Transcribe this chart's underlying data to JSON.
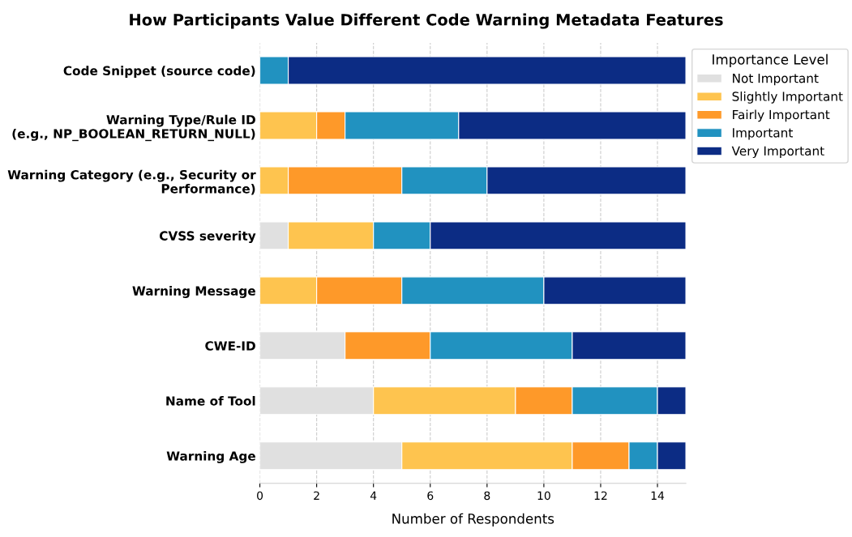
{
  "chart_data": {
    "type": "bar",
    "orientation": "horizontal",
    "stacked": true,
    "title": "How Participants Value Different Code Warning Metadata Features",
    "xlabel": "Number of Respondents",
    "legend_title": "Importance Level",
    "categories": [
      "Code Snippet (source code)",
      "Warning Type/Rule ID\n(e.g., NP_BOOLEAN_RETURN_NULL)",
      "Warning Category (e.g., Security or\nPerformance)",
      "CVSS severity",
      "Warning Message",
      "CWE-ID",
      "Name of Tool",
      "Warning Age"
    ],
    "series": [
      {
        "name": "Not Important",
        "color": "#e0e0e0",
        "values": [
          0,
          0,
          0,
          1,
          0,
          3,
          4,
          5
        ]
      },
      {
        "name": "Slightly Important",
        "color": "#fec44f",
        "values": [
          0,
          2,
          1,
          3,
          2,
          0,
          5,
          6
        ]
      },
      {
        "name": "Fairly Important",
        "color": "#fe9929",
        "values": [
          0,
          1,
          4,
          0,
          3,
          3,
          2,
          2
        ]
      },
      {
        "name": "Important",
        "color": "#2192c0",
        "values": [
          1,
          4,
          3,
          2,
          5,
          5,
          3,
          1
        ]
      },
      {
        "name": "Very Important",
        "color": "#0c2c84",
        "values": [
          14,
          8,
          7,
          9,
          5,
          4,
          1,
          1
        ]
      }
    ],
    "xlim": [
      0,
      15
    ],
    "xticks": [
      0,
      2,
      4,
      6,
      8,
      10,
      12,
      14
    ],
    "grid": "x",
    "legend": "top right"
  }
}
